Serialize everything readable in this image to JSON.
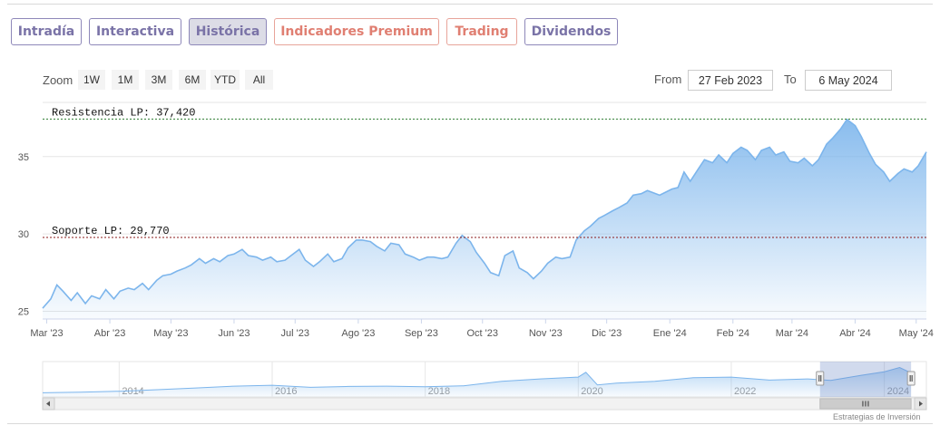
{
  "tabs": [
    {
      "label": "Intradía",
      "style": "purple",
      "active": false
    },
    {
      "label": "Interactiva",
      "style": "purple",
      "active": false
    },
    {
      "label": "Histórica",
      "style": "purple",
      "active": true
    },
    {
      "label": "Indicadores Premium",
      "style": "coral",
      "active": false
    },
    {
      "label": "Trading",
      "style": "coral",
      "active": false
    },
    {
      "label": "Dividendos",
      "style": "purple",
      "active": false
    }
  ],
  "range_selector": {
    "zoom_label": "Zoom",
    "buttons": [
      "1W",
      "1M",
      "3M",
      "6M",
      "YTD",
      "All"
    ],
    "from_label": "From",
    "from_value": "27 Feb 2023",
    "to_label": "To",
    "to_value": "6 May 2024"
  },
  "credits": "Estrategias de Inversión",
  "colors": {
    "line": "#7cb5ec",
    "area_top": "#7cb5ec",
    "resistance": "#2e7d32",
    "support": "#8b1a1a",
    "tab_purple": "#7a73a7",
    "tab_coral": "#e07f72"
  },
  "chart_data": {
    "type": "area",
    "title": "",
    "xlabel": "",
    "ylabel": "",
    "ylim": [
      24.5,
      38.5
    ],
    "yticks": [
      25,
      30,
      35
    ],
    "xlim": [
      "2023-02-27",
      "2024-05-06"
    ],
    "xticks": [
      {
        "date": "2023-03-01",
        "label": "Mar '23"
      },
      {
        "date": "2023-04-01",
        "label": "Abr '23"
      },
      {
        "date": "2023-05-01",
        "label": "May '23"
      },
      {
        "date": "2023-06-01",
        "label": "Jun '23"
      },
      {
        "date": "2023-07-01",
        "label": "Jul '23"
      },
      {
        "date": "2023-08-01",
        "label": "Ago '23"
      },
      {
        "date": "2023-09-01",
        "label": "Sep '23"
      },
      {
        "date": "2023-10-01",
        "label": "Oct '23"
      },
      {
        "date": "2023-11-01",
        "label": "Nov '23"
      },
      {
        "date": "2023-12-01",
        "label": "Dic '23"
      },
      {
        "date": "2024-01-01",
        "label": "Ene '24"
      },
      {
        "date": "2024-02-01",
        "label": "Feb '24"
      },
      {
        "date": "2024-03-01",
        "label": "Mar '24"
      },
      {
        "date": "2024-04-01",
        "label": "Abr '24"
      },
      {
        "date": "2024-05-01",
        "label": "May '24"
      }
    ],
    "plot_lines": [
      {
        "label": "Resistencia LP: 37,420",
        "value": 37.42,
        "color": "#2e7d32"
      },
      {
        "label": "Soporte LP: 29,770",
        "value": 29.77,
        "color": "#8b1a1a"
      }
    ],
    "series": [
      {
        "values": [
          [
            "2023-02-27",
            25.2
          ],
          [
            "2023-03-03",
            25.8
          ],
          [
            "2023-03-06",
            26.7
          ],
          [
            "2023-03-09",
            26.3
          ],
          [
            "2023-03-13",
            25.7
          ],
          [
            "2023-03-16",
            26.2
          ],
          [
            "2023-03-20",
            25.5
          ],
          [
            "2023-03-23",
            26.0
          ],
          [
            "2023-03-27",
            25.8
          ],
          [
            "2023-03-30",
            26.4
          ],
          [
            "2023-04-03",
            25.8
          ],
          [
            "2023-04-06",
            26.3
          ],
          [
            "2023-04-10",
            26.5
          ],
          [
            "2023-04-13",
            26.4
          ],
          [
            "2023-04-17",
            26.8
          ],
          [
            "2023-04-20",
            26.4
          ],
          [
            "2023-04-24",
            27.0
          ],
          [
            "2023-04-27",
            27.3
          ],
          [
            "2023-05-01",
            27.4
          ],
          [
            "2023-05-04",
            27.6
          ],
          [
            "2023-05-08",
            27.8
          ],
          [
            "2023-05-11",
            28.0
          ],
          [
            "2023-05-15",
            28.4
          ],
          [
            "2023-05-18",
            28.1
          ],
          [
            "2023-05-22",
            28.4
          ],
          [
            "2023-05-25",
            28.2
          ],
          [
            "2023-05-29",
            28.6
          ],
          [
            "2023-06-01",
            28.7
          ],
          [
            "2023-06-05",
            29.0
          ],
          [
            "2023-06-08",
            28.6
          ],
          [
            "2023-06-12",
            28.5
          ],
          [
            "2023-06-15",
            28.3
          ],
          [
            "2023-06-19",
            28.5
          ],
          [
            "2023-06-22",
            28.2
          ],
          [
            "2023-06-26",
            28.3
          ],
          [
            "2023-06-29",
            28.6
          ],
          [
            "2023-07-03",
            29.0
          ],
          [
            "2023-07-06",
            28.3
          ],
          [
            "2023-07-10",
            27.9
          ],
          [
            "2023-07-13",
            28.2
          ],
          [
            "2023-07-17",
            28.7
          ],
          [
            "2023-07-20",
            28.2
          ],
          [
            "2023-07-24",
            28.4
          ],
          [
            "2023-07-27",
            29.1
          ],
          [
            "2023-07-31",
            29.6
          ],
          [
            "2023-08-03",
            29.6
          ],
          [
            "2023-08-07",
            29.5
          ],
          [
            "2023-08-10",
            29.2
          ],
          [
            "2023-08-14",
            28.9
          ],
          [
            "2023-08-17",
            29.4
          ],
          [
            "2023-08-21",
            29.3
          ],
          [
            "2023-08-24",
            28.7
          ],
          [
            "2023-08-28",
            28.5
          ],
          [
            "2023-08-31",
            28.3
          ],
          [
            "2023-09-04",
            28.5
          ],
          [
            "2023-09-07",
            28.5
          ],
          [
            "2023-09-11",
            28.4
          ],
          [
            "2023-09-14",
            28.5
          ],
          [
            "2023-09-18",
            29.4
          ],
          [
            "2023-09-21",
            29.9
          ],
          [
            "2023-09-25",
            29.5
          ],
          [
            "2023-09-28",
            28.8
          ],
          [
            "2023-10-02",
            28.1
          ],
          [
            "2023-10-05",
            27.5
          ],
          [
            "2023-10-09",
            27.3
          ],
          [
            "2023-10-12",
            28.6
          ],
          [
            "2023-10-16",
            28.9
          ],
          [
            "2023-10-19",
            27.8
          ],
          [
            "2023-10-23",
            27.5
          ],
          [
            "2023-10-26",
            27.1
          ],
          [
            "2023-10-30",
            27.6
          ],
          [
            "2023-11-02",
            28.1
          ],
          [
            "2023-11-06",
            28.5
          ],
          [
            "2023-11-09",
            28.4
          ],
          [
            "2023-11-13",
            28.5
          ],
          [
            "2023-11-16",
            29.6
          ],
          [
            "2023-11-20",
            30.2
          ],
          [
            "2023-11-23",
            30.5
          ],
          [
            "2023-11-27",
            31.0
          ],
          [
            "2023-11-30",
            31.2
          ],
          [
            "2023-12-04",
            31.5
          ],
          [
            "2023-12-07",
            31.7
          ],
          [
            "2023-12-11",
            32.0
          ],
          [
            "2023-12-14",
            32.5
          ],
          [
            "2023-12-18",
            32.6
          ],
          [
            "2023-12-21",
            32.8
          ],
          [
            "2023-12-27",
            32.5
          ],
          [
            "2024-01-02",
            32.9
          ],
          [
            "2024-01-05",
            33.0
          ],
          [
            "2024-01-08",
            34.0
          ],
          [
            "2024-01-11",
            33.4
          ],
          [
            "2024-01-15",
            34.2
          ],
          [
            "2024-01-18",
            34.8
          ],
          [
            "2024-01-22",
            34.6
          ],
          [
            "2024-01-25",
            35.1
          ],
          [
            "2024-01-29",
            34.6
          ],
          [
            "2024-02-01",
            35.2
          ],
          [
            "2024-02-05",
            35.6
          ],
          [
            "2024-02-08",
            35.4
          ],
          [
            "2024-02-12",
            34.8
          ],
          [
            "2024-02-15",
            35.4
          ],
          [
            "2024-02-19",
            35.6
          ],
          [
            "2024-02-22",
            35.1
          ],
          [
            "2024-02-26",
            35.3
          ],
          [
            "2024-02-29",
            34.7
          ],
          [
            "2024-03-04",
            34.6
          ],
          [
            "2024-03-07",
            34.9
          ],
          [
            "2024-03-11",
            34.4
          ],
          [
            "2024-03-14",
            34.8
          ],
          [
            "2024-03-18",
            35.8
          ],
          [
            "2024-03-21",
            36.2
          ],
          [
            "2024-03-25",
            36.8
          ],
          [
            "2024-03-28",
            37.4
          ],
          [
            "2024-04-01",
            37.0
          ],
          [
            "2024-04-04",
            36.3
          ],
          [
            "2024-04-08",
            35.2
          ],
          [
            "2024-04-11",
            34.5
          ],
          [
            "2024-04-15",
            34.0
          ],
          [
            "2024-04-18",
            33.4
          ],
          [
            "2024-04-22",
            33.9
          ],
          [
            "2024-04-25",
            34.2
          ],
          [
            "2024-04-29",
            34.0
          ],
          [
            "2024-05-02",
            34.4
          ],
          [
            "2024-05-06",
            35.3
          ]
        ]
      }
    ],
    "navigator": {
      "labels": [
        "2014",
        "2016",
        "2018",
        "2020",
        "2022",
        "2024"
      ],
      "values": [
        [
          2013.0,
          0.14
        ],
        [
          2013.5,
          0.16
        ],
        [
          2014.0,
          0.19
        ],
        [
          2014.5,
          0.24
        ],
        [
          2015.0,
          0.3
        ],
        [
          2015.5,
          0.36
        ],
        [
          2016.0,
          0.39
        ],
        [
          2016.5,
          0.32
        ],
        [
          2017.0,
          0.35
        ],
        [
          2017.5,
          0.36
        ],
        [
          2018.0,
          0.34
        ],
        [
          2018.5,
          0.37
        ],
        [
          2019.0,
          0.52
        ],
        [
          2019.5,
          0.6
        ],
        [
          2020.0,
          0.66
        ],
        [
          2020.1,
          0.82
        ],
        [
          2020.25,
          0.4
        ],
        [
          2020.5,
          0.46
        ],
        [
          2021.0,
          0.52
        ],
        [
          2021.5,
          0.64
        ],
        [
          2022.0,
          0.66
        ],
        [
          2022.5,
          0.56
        ],
        [
          2023.0,
          0.6
        ],
        [
          2023.3,
          0.55
        ],
        [
          2023.7,
          0.72
        ],
        [
          2024.0,
          0.84
        ],
        [
          2024.2,
          0.98
        ],
        [
          2024.35,
          0.8
        ]
      ]
    }
  }
}
